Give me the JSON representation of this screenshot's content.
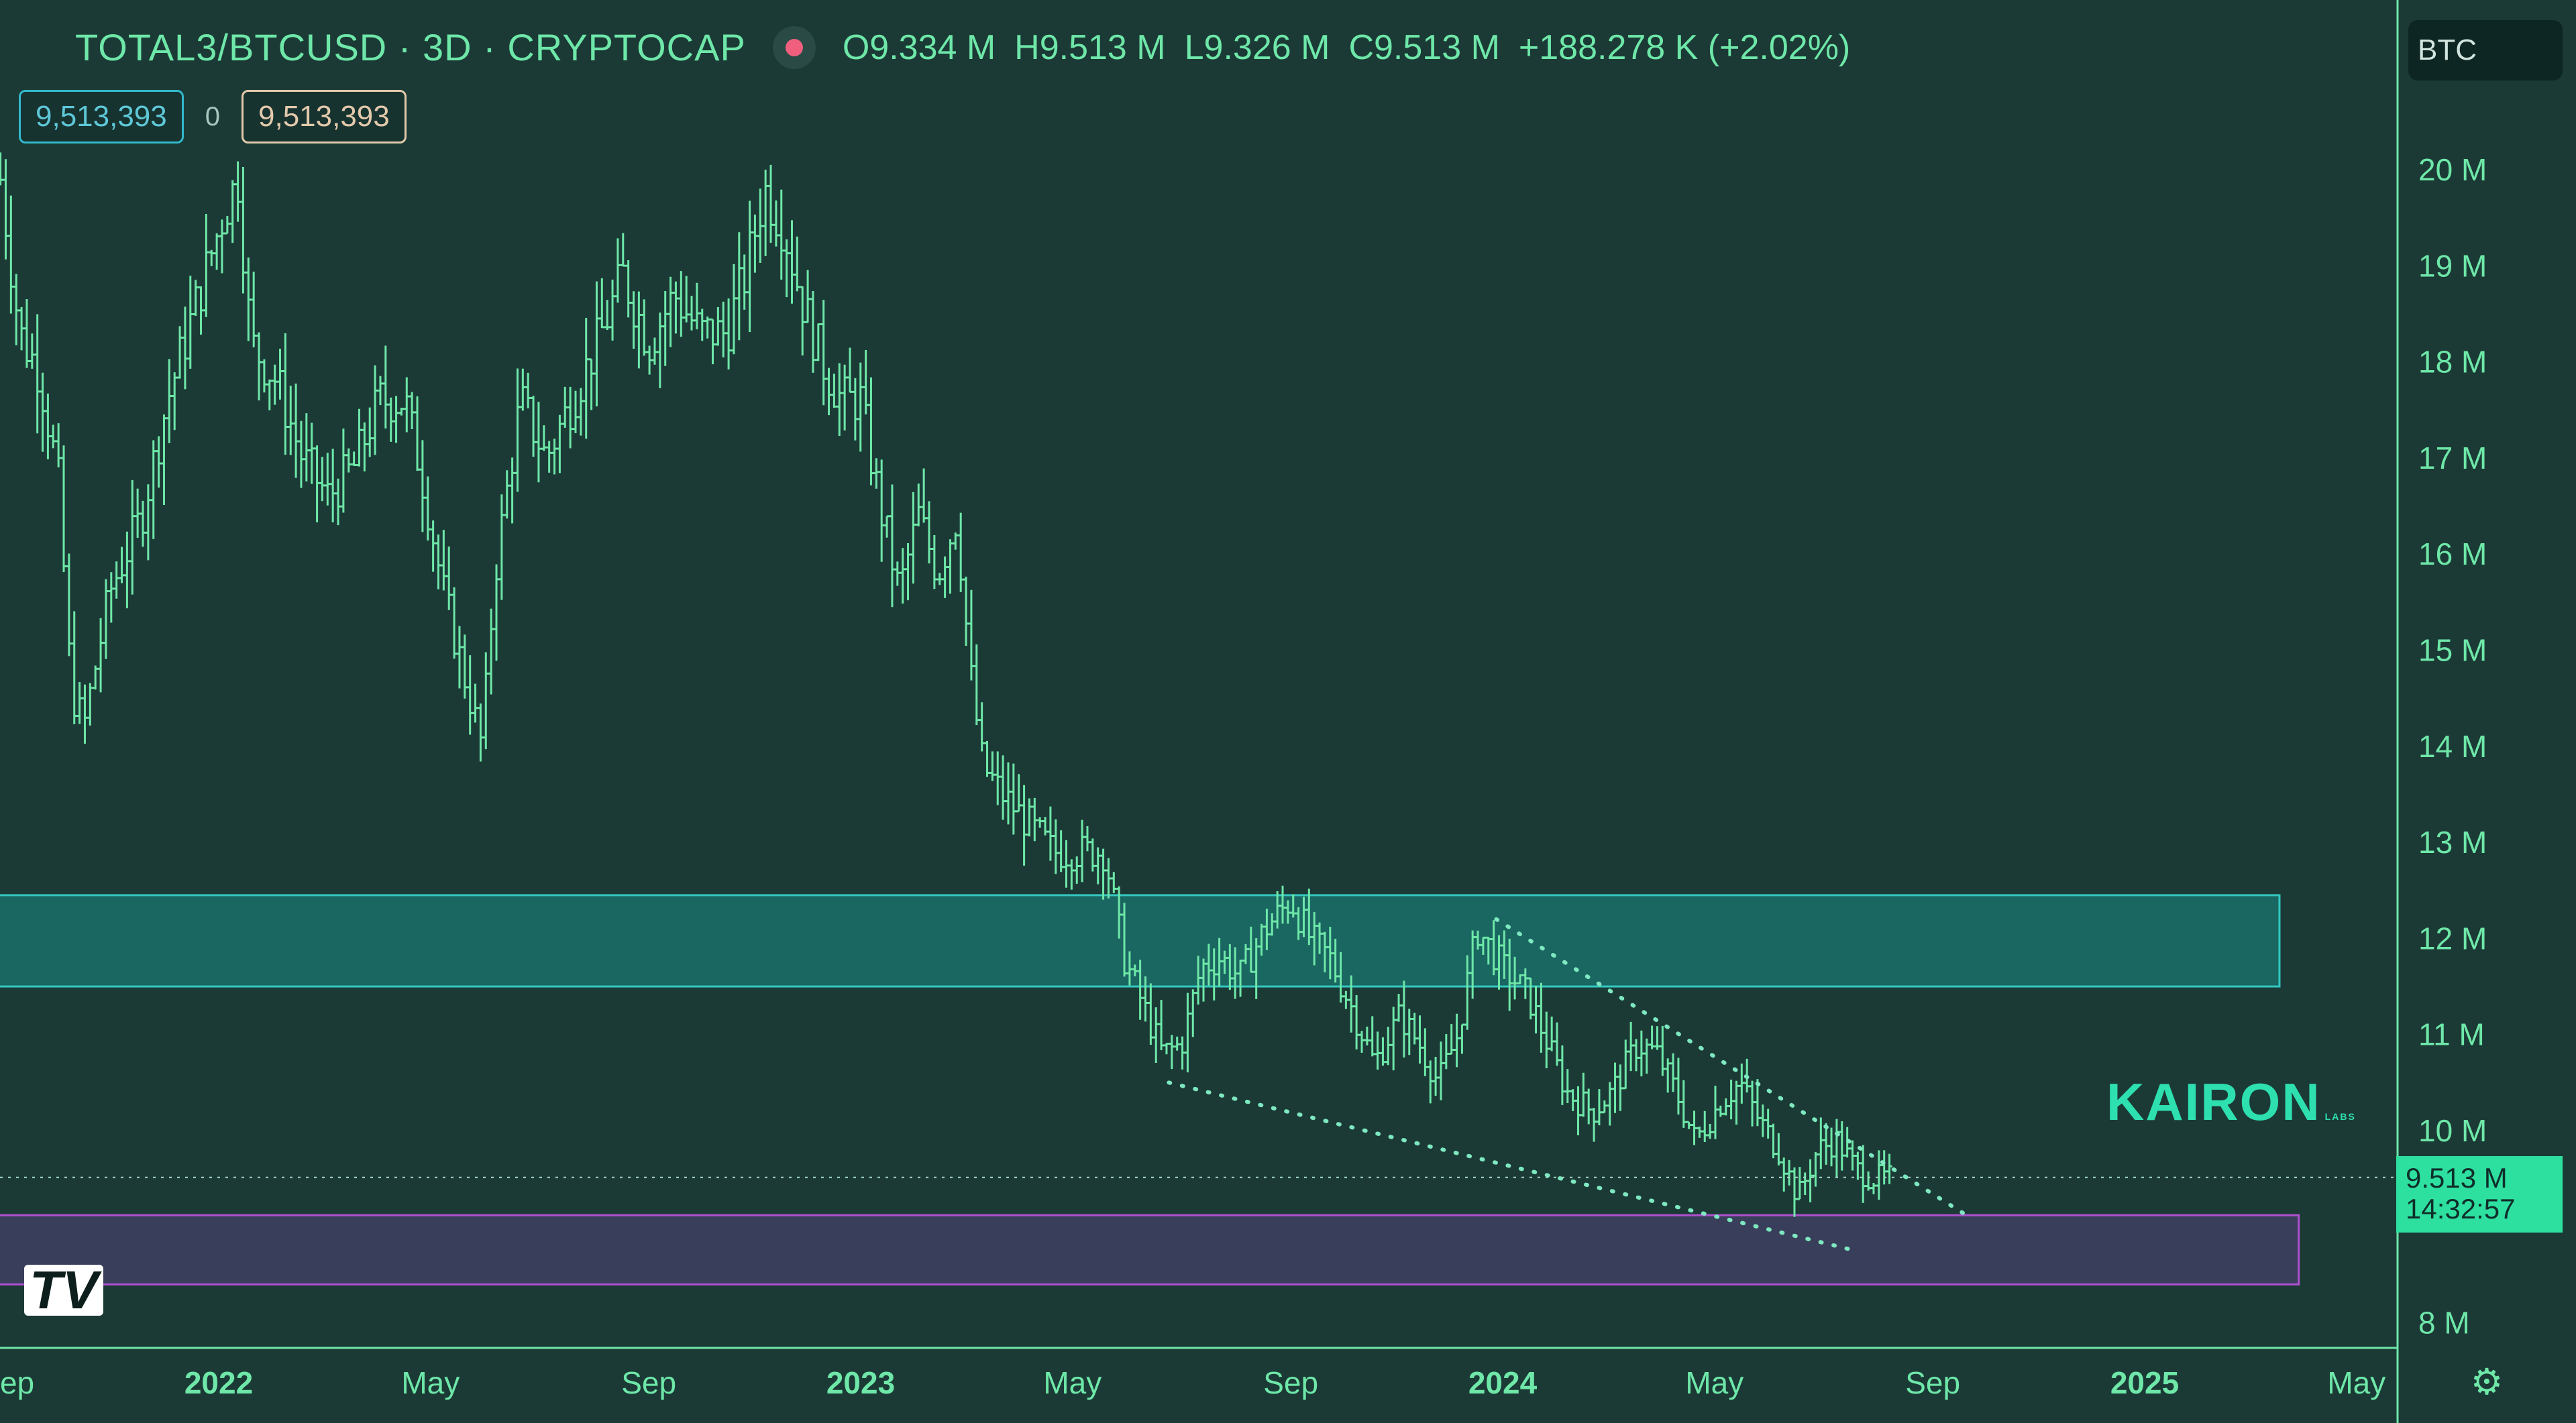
{
  "header": {
    "symbol": "TOTAL3/BTCUSD · 3D · CRYPTOCAP",
    "open": "O9.334 M",
    "high": "H9.513 M",
    "low": "L9.326 M",
    "close": "C9.513 M",
    "change": "+188.278 K (+2.02%)"
  },
  "value_boxes": {
    "left": "9,513,393",
    "middle": "0",
    "right": "9,513,393"
  },
  "currency": "BTC",
  "watermark": {
    "main": "KAIRON",
    "sub": "LABS"
  },
  "logo_text": "TV",
  "price_tag": {
    "price": "9.513 M",
    "countdown": "14:32:57"
  },
  "colors": {
    "background": "#1b3a36",
    "candle": "#6ee7a8",
    "resistance_zone": "#1a6f68",
    "support_zone": "#3d3f5e",
    "support_border": "#b050d0"
  },
  "chart_data": {
    "type": "ohlc",
    "title": "TOTAL3/BTCUSD · 3D · CRYPTOCAP",
    "y_unit": "M",
    "ylim": [
      7.7,
      21.5
    ],
    "y_ticks": [
      {
        "v": 20,
        "label": "20 M"
      },
      {
        "v": 19,
        "label": "19 M"
      },
      {
        "v": 18,
        "label": "18 M"
      },
      {
        "v": 17,
        "label": "17 M"
      },
      {
        "v": 16,
        "label": "16 M"
      },
      {
        "v": 15,
        "label": "15 M"
      },
      {
        "v": 14,
        "label": "14 M"
      },
      {
        "v": 13,
        "label": "13 M"
      },
      {
        "v": 12,
        "label": "12 M"
      },
      {
        "v": 11,
        "label": "11 M"
      },
      {
        "v": 10,
        "label": "10 M"
      },
      {
        "v": 8,
        "label": "8 M"
      }
    ],
    "x_ticks": [
      {
        "t": 2021.67,
        "label": "Sep",
        "bold": false
      },
      {
        "t": 2022.0,
        "label": "2022",
        "bold": true
      },
      {
        "t": 2022.33,
        "label": "May",
        "bold": false
      },
      {
        "t": 2022.67,
        "label": "Sep",
        "bold": false
      },
      {
        "t": 2023.0,
        "label": "2023",
        "bold": true
      },
      {
        "t": 2023.33,
        "label": "May",
        "bold": false
      },
      {
        "t": 2023.67,
        "label": "Sep",
        "bold": false
      },
      {
        "t": 2024.0,
        "label": "2024",
        "bold": true
      },
      {
        "t": 2024.33,
        "label": "May",
        "bold": false
      },
      {
        "t": 2024.67,
        "label": "Sep",
        "bold": false
      },
      {
        "t": 2025.0,
        "label": "2025",
        "bold": true
      },
      {
        "t": 2025.33,
        "label": "May",
        "bold": false
      }
    ],
    "xlim": [
      2021.65,
      2025.46
    ],
    "price_path": [
      [
        2021.66,
        19.9
      ],
      [
        2021.69,
        18.3
      ],
      [
        2021.72,
        17.9
      ],
      [
        2021.75,
        16.8
      ],
      [
        2021.77,
        14.6
      ],
      [
        2021.79,
        14.2
      ],
      [
        2021.83,
        15.6
      ],
      [
        2021.88,
        16.4
      ],
      [
        2021.92,
        17.6
      ],
      [
        2021.96,
        18.5
      ],
      [
        2022.01,
        19.6
      ],
      [
        2022.03,
        19.9
      ],
      [
        2022.05,
        18.2
      ],
      [
        2022.09,
        17.8
      ],
      [
        2022.13,
        17.0
      ],
      [
        2022.17,
        16.6
      ],
      [
        2022.21,
        16.9
      ],
      [
        2022.25,
        17.6
      ],
      [
        2022.29,
        17.6
      ],
      [
        2022.32,
        16.7
      ],
      [
        2022.35,
        15.6
      ],
      [
        2022.38,
        14.8
      ],
      [
        2022.41,
        14.0
      ],
      [
        2022.43,
        15.8
      ],
      [
        2022.47,
        17.6
      ],
      [
        2022.51,
        17.0
      ],
      [
        2022.55,
        17.6
      ],
      [
        2022.59,
        18.2
      ],
      [
        2022.63,
        18.9
      ],
      [
        2022.67,
        18.2
      ],
      [
        2022.71,
        18.7
      ],
      [
        2022.75,
        18.3
      ],
      [
        2022.79,
        18.3
      ],
      [
        2022.82,
        18.9
      ],
      [
        2022.85,
        19.8
      ],
      [
        2022.88,
        19.4
      ],
      [
        2022.91,
        18.6
      ],
      [
        2022.94,
        18.0
      ],
      [
        2022.97,
        17.6
      ],
      [
        2023.0,
        17.6
      ],
      [
        2023.03,
        16.5
      ],
      [
        2023.06,
        15.6
      ],
      [
        2023.09,
        16.4
      ],
      [
        2023.12,
        15.8
      ],
      [
        2023.15,
        16.4
      ],
      [
        2023.17,
        14.8
      ],
      [
        2023.19,
        13.8
      ],
      [
        2023.22,
        13.5
      ],
      [
        2023.26,
        13.2
      ],
      [
        2023.3,
        12.9
      ],
      [
        2023.34,
        12.9
      ],
      [
        2023.38,
        12.9
      ],
      [
        2023.41,
        11.8
      ],
      [
        2023.44,
        11.3
      ],
      [
        2023.47,
        10.8
      ],
      [
        2023.5,
        10.9
      ],
      [
        2023.53,
        11.7
      ],
      [
        2023.56,
        11.8
      ],
      [
        2023.59,
        11.6
      ],
      [
        2023.63,
        12.1
      ],
      [
        2023.67,
        12.4
      ],
      [
        2023.7,
        12.0
      ],
      [
        2023.73,
        11.8
      ],
      [
        2023.77,
        11.2
      ],
      [
        2023.8,
        10.7
      ],
      [
        2023.84,
        11.2
      ],
      [
        2023.87,
        10.9
      ],
      [
        2023.9,
        10.5
      ],
      [
        2023.93,
        11.0
      ],
      [
        2023.96,
        12.1
      ],
      [
        2024.0,
        11.7
      ],
      [
        2024.04,
        11.4
      ],
      [
        2024.07,
        10.9
      ],
      [
        2024.1,
        10.4
      ],
      [
        2024.14,
        10.2
      ],
      [
        2024.17,
        10.4
      ],
      [
        2024.21,
        10.9
      ],
      [
        2024.24,
        10.8
      ],
      [
        2024.27,
        10.4
      ],
      [
        2024.3,
        9.9
      ],
      [
        2024.34,
        10.3
      ],
      [
        2024.37,
        10.5
      ],
      [
        2024.4,
        10.1
      ],
      [
        2024.43,
        9.8
      ],
      [
        2024.46,
        9.3
      ],
      [
        2024.49,
        9.8
      ],
      [
        2024.52,
        9.9
      ],
      [
        2024.55,
        9.6
      ],
      [
        2024.58,
        9.5
      ],
      [
        2024.61,
        9.51
      ]
    ],
    "zones": [
      {
        "name": "resistance",
        "y0": 11.5,
        "y1": 12.45,
        "t0": 2021.6,
        "t1": 2025.21
      },
      {
        "name": "support",
        "y0": 8.4,
        "y1": 9.12,
        "t0": 2021.6,
        "t1": 2025.24
      }
    ],
    "trendlines": [
      {
        "name": "upper",
        "t0": 2023.99,
        "y0": 12.2,
        "t1": 2024.72,
        "y1": 9.13
      },
      {
        "name": "lower",
        "t0": 2023.48,
        "y0": 10.5,
        "t1": 2024.55,
        "y1": 8.75
      }
    ],
    "last_price": 9.513
  }
}
